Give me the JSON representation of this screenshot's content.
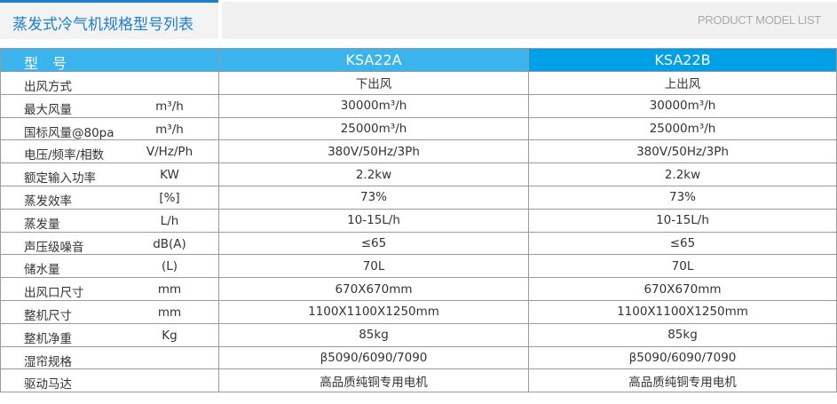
{
  "header": {
    "title": "蒸发式冷气机规格型号列表",
    "subtitle": "PRODUCT MODEL LIST",
    "accent_color": "#1a7fd0"
  },
  "table": {
    "header": {
      "label": "型　号",
      "models": [
        "KSA22A",
        "KSA22B"
      ],
      "colors": [
        "#3bb3ec",
        "#00a0e9"
      ]
    },
    "rows": [
      {
        "label": "出风方式",
        "unit": "",
        "a": "下出风",
        "b": "上出风"
      },
      {
        "label": "最大风量",
        "unit": "m³/h",
        "a": "30000m³/h",
        "b": "30000m³/h"
      },
      {
        "label": "国标风量@80pa",
        "unit": "m³/h",
        "a": "25000m³/h",
        "b": "25000m³/h"
      },
      {
        "label": "电压/频率/相数",
        "unit": "V/Hz/Ph",
        "a": "380V/50Hz/3Ph",
        "b": "380V/50Hz/3Ph"
      },
      {
        "label": "额定输入功率",
        "unit": "KW",
        "a": "2.2kw",
        "b": "2.2kw"
      },
      {
        "label": "蒸发效率",
        "unit": "[%]",
        "a": "73%",
        "b": "73%"
      },
      {
        "label": "蒸发量",
        "unit": "L/h",
        "a": "10-15L/h",
        "b": "10-15L/h"
      },
      {
        "label": "声压级噪音",
        "unit": "dB(A)",
        "a": "≤65",
        "b": "≤65"
      },
      {
        "label": "储水量",
        "unit": "(L)",
        "a": "70L",
        "b": "70L"
      },
      {
        "label": "出风口尺寸",
        "unit": "mm",
        "a": "670X670mm",
        "b": "670X670mm"
      },
      {
        "label": "整机尺寸",
        "unit": "mm",
        "a": "1100X1100X1250mm",
        "b": "1100X1100X1250mm"
      },
      {
        "label": "整机净重",
        "unit": "Kg",
        "a": "85kg",
        "b": "85kg"
      },
      {
        "label": "湿帘规格",
        "unit": "",
        "a": "β5090/6090/7090",
        "b": "β5090/6090/7090"
      },
      {
        "label": "驱动马达",
        "unit": "",
        "a": "高品质纯铜专用电机",
        "b": "高品质纯铜专用电机"
      }
    ]
  }
}
